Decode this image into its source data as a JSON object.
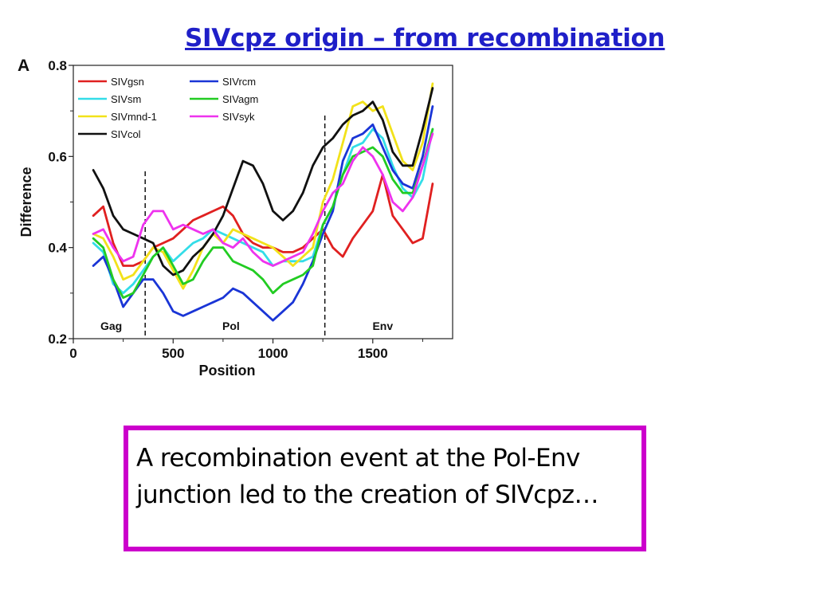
{
  "slide": {
    "title": "SIVcpz origin – from recombination",
    "note": "A recombination event at the Pol-Env junction led to the creation of SIVcpz…"
  },
  "chart_data": {
    "type": "line",
    "panel_label": "A",
    "xlabel": "Position",
    "ylabel": "Difference",
    "xlim": [
      0,
      1900
    ],
    "ylim": [
      0.2,
      0.8
    ],
    "xticks": [
      0,
      500,
      1000,
      1500
    ],
    "yticks": [
      0.2,
      0.4,
      0.6,
      0.8
    ],
    "xtick_labels": [
      "0",
      "500",
      "1000",
      "1500"
    ],
    "ytick_labels": [
      "0.2",
      "0.4",
      "0.6",
      "0.8"
    ],
    "grid": false,
    "legend_position": "top-left",
    "region_boundaries": [
      360,
      1260
    ],
    "regions": [
      {
        "label": "Gag",
        "x": 190
      },
      {
        "label": "Pol",
        "x": 790
      },
      {
        "label": "Env",
        "x": 1550
      }
    ],
    "x": [
      100,
      150,
      200,
      250,
      300,
      350,
      400,
      450,
      500,
      550,
      600,
      650,
      700,
      750,
      800,
      850,
      900,
      950,
      1000,
      1050,
      1100,
      1150,
      1200,
      1250,
      1300,
      1350,
      1400,
      1450,
      1500,
      1550,
      1600,
      1650,
      1700,
      1750,
      1800
    ],
    "series": [
      {
        "name": "SIVgsn",
        "color": "#e02020",
        "values": [
          0.47,
          0.49,
          0.41,
          0.36,
          0.36,
          0.37,
          0.4,
          0.41,
          0.42,
          0.44,
          0.46,
          0.47,
          0.48,
          0.49,
          0.47,
          0.43,
          0.41,
          0.4,
          0.4,
          0.39,
          0.39,
          0.4,
          0.42,
          0.44,
          0.4,
          0.38,
          0.42,
          0.45,
          0.48,
          0.56,
          0.47,
          0.44,
          0.41,
          0.42,
          0.54
        ]
      },
      {
        "name": "SIVsm",
        "color": "#33dde8",
        "values": [
          0.41,
          0.39,
          0.32,
          0.3,
          0.32,
          0.35,
          0.38,
          0.4,
          0.37,
          0.39,
          0.41,
          0.42,
          0.44,
          0.43,
          0.42,
          0.41,
          0.4,
          0.39,
          0.36,
          0.37,
          0.37,
          0.37,
          0.38,
          0.45,
          0.49,
          0.56,
          0.62,
          0.63,
          0.66,
          0.64,
          0.58,
          0.53,
          0.51,
          0.55,
          0.66
        ]
      },
      {
        "name": "SIVmnd-1",
        "color": "#f2e21a",
        "values": [
          0.43,
          0.42,
          0.38,
          0.33,
          0.34,
          0.37,
          0.4,
          0.39,
          0.35,
          0.31,
          0.35,
          0.4,
          0.43,
          0.41,
          0.44,
          0.43,
          0.42,
          0.41,
          0.4,
          0.38,
          0.36,
          0.38,
          0.4,
          0.5,
          0.55,
          0.63,
          0.71,
          0.72,
          0.7,
          0.71,
          0.65,
          0.59,
          0.57,
          0.63,
          0.76
        ]
      },
      {
        "name": "SIVcol",
        "color": "#111111",
        "values": [
          0.57,
          0.53,
          0.47,
          0.44,
          0.43,
          0.42,
          0.41,
          0.36,
          0.34,
          0.35,
          0.38,
          0.4,
          0.43,
          0.47,
          0.53,
          0.59,
          0.58,
          0.54,
          0.48,
          0.46,
          0.48,
          0.52,
          0.58,
          0.62,
          0.64,
          0.67,
          0.69,
          0.7,
          0.72,
          0.68,
          0.61,
          0.58,
          0.58,
          0.66,
          0.75
        ]
      },
      {
        "name": "SIVrcm",
        "color": "#1a35d6",
        "values": [
          0.36,
          0.38,
          0.33,
          0.27,
          0.3,
          0.33,
          0.33,
          0.3,
          0.26,
          0.25,
          0.26,
          0.27,
          0.28,
          0.29,
          0.31,
          0.3,
          0.28,
          0.26,
          0.24,
          0.26,
          0.28,
          0.32,
          0.37,
          0.43,
          0.48,
          0.59,
          0.64,
          0.65,
          0.67,
          0.62,
          0.57,
          0.54,
          0.53,
          0.6,
          0.71
        ]
      },
      {
        "name": "SIVagm",
        "color": "#22cc22",
        "values": [
          0.42,
          0.4,
          0.33,
          0.29,
          0.3,
          0.34,
          0.38,
          0.4,
          0.36,
          0.32,
          0.33,
          0.37,
          0.4,
          0.4,
          0.37,
          0.36,
          0.35,
          0.33,
          0.3,
          0.32,
          0.33,
          0.34,
          0.36,
          0.45,
          0.49,
          0.56,
          0.6,
          0.61,
          0.62,
          0.6,
          0.55,
          0.52,
          0.52,
          0.58,
          0.66
        ]
      },
      {
        "name": "SIVsyk",
        "color": "#ee33ee",
        "values": [
          0.43,
          0.44,
          0.4,
          0.37,
          0.38,
          0.45,
          0.48,
          0.48,
          0.44,
          0.45,
          0.44,
          0.43,
          0.44,
          0.41,
          0.4,
          0.42,
          0.39,
          0.37,
          0.36,
          0.37,
          0.38,
          0.39,
          0.43,
          0.48,
          0.52,
          0.54,
          0.59,
          0.62,
          0.6,
          0.56,
          0.5,
          0.48,
          0.51,
          0.58,
          0.65
        ]
      }
    ],
    "legend_order": [
      "SIVgsn",
      "SIVrcm",
      "SIVsm",
      "SIVagm",
      "SIVmnd-1",
      "SIVsyk",
      "SIVcol"
    ]
  }
}
